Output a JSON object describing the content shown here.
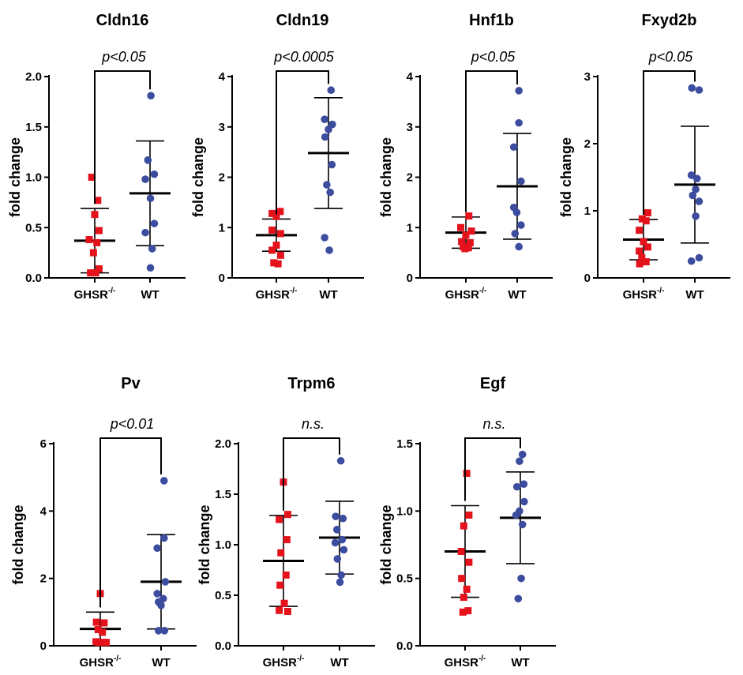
{
  "colors": {
    "ghsr": "#e3121b",
    "wt": "#3c4c9e",
    "axis": "#000000"
  },
  "chart_data": [
    {
      "type": "scatter",
      "title": "Cldn16",
      "ylabel": "fold change",
      "categories": [
        "GHSR",
        "WT"
      ],
      "category_superscript": [
        "-/-",
        ""
      ],
      "ylim": [
        0,
        2.0
      ],
      "yticks": [
        0,
        0.5,
        1.0,
        1.5,
        2.0
      ],
      "tick_labels": [
        "0.0",
        "0.5",
        "1.0",
        "1.5",
        "2.0"
      ],
      "significance": "p<0.05",
      "series": [
        {
          "name": "GHSR-/-",
          "mean": 0.37,
          "sd": 0.32,
          "points": [
            [
              -0.07,
              1.0
            ],
            [
              0.07,
              0.77
            ],
            [
              0.0,
              0.63
            ],
            [
              0.1,
              0.47
            ],
            [
              -0.13,
              0.38
            ],
            [
              0.05,
              0.35
            ],
            [
              -0.03,
              0.25
            ],
            [
              0.1,
              0.09
            ],
            [
              -0.1,
              0.05
            ],
            [
              0.02,
              0.05
            ]
          ]
        },
        {
          "name": "WT",
          "mean": 0.84,
          "sd": 0.52,
          "points": [
            [
              0.02,
              1.81
            ],
            [
              -0.05,
              1.17
            ],
            [
              0.1,
              1.03
            ],
            [
              -0.11,
              0.98
            ],
            [
              0.01,
              0.79
            ],
            [
              0.1,
              0.54
            ],
            [
              -0.11,
              0.45
            ],
            [
              0.05,
              0.29
            ],
            [
              0.01,
              0.1
            ]
          ]
        }
      ]
    },
    {
      "type": "scatter",
      "title": "Cldn19",
      "ylabel": "fold change",
      "categories": [
        "GHSR",
        "WT"
      ],
      "category_superscript": [
        "-/-",
        ""
      ],
      "ylim": [
        0,
        4
      ],
      "yticks": [
        0,
        1,
        2,
        3,
        4
      ],
      "tick_labels": [
        "0",
        "1",
        "2",
        "3",
        "4"
      ],
      "significance": "p<0.0005",
      "series": [
        {
          "name": "GHSR-/-",
          "mean": 0.85,
          "sd": 0.32,
          "points": [
            [
              0.09,
              1.32
            ],
            [
              -0.1,
              1.28
            ],
            [
              0.0,
              1.22
            ],
            [
              -0.1,
              0.95
            ],
            [
              0.1,
              0.88
            ],
            [
              0.0,
              0.65
            ],
            [
              -0.1,
              0.55
            ],
            [
              0.1,
              0.45
            ],
            [
              -0.06,
              0.3
            ],
            [
              0.04,
              0.28
            ]
          ]
        },
        {
          "name": "WT",
          "mean": 2.48,
          "sd": 1.1,
          "points": [
            [
              0.06,
              3.73
            ],
            [
              -0.09,
              3.15
            ],
            [
              0.09,
              3.05
            ],
            [
              0.0,
              2.95
            ],
            [
              -0.08,
              2.8
            ],
            [
              0.08,
              2.25
            ],
            [
              -0.04,
              1.85
            ],
            [
              0.04,
              1.7
            ],
            [
              -0.09,
              0.8
            ],
            [
              0.02,
              0.55
            ]
          ]
        }
      ]
    },
    {
      "type": "scatter",
      "title": "Hnf1b",
      "ylabel": "fold change",
      "categories": [
        "GHSR",
        "WT"
      ],
      "category_superscript": [
        "-/-",
        ""
      ],
      "ylim": [
        0,
        4
      ],
      "yticks": [
        0,
        1,
        2,
        3,
        4
      ],
      "tick_labels": [
        "0",
        "1",
        "2",
        "3",
        "4"
      ],
      "significance": "p<0.05",
      "series": [
        {
          "name": "GHSR-/-",
          "mean": 0.9,
          "sd": 0.31,
          "points": [
            [
              0.07,
              1.23
            ],
            [
              -0.12,
              1.0
            ],
            [
              0.13,
              0.93
            ],
            [
              0.0,
              0.85
            ],
            [
              -0.1,
              0.72
            ],
            [
              0.1,
              0.7
            ],
            [
              -0.06,
              0.62
            ],
            [
              0.06,
              0.6
            ],
            [
              -0.02,
              0.58
            ]
          ]
        },
        {
          "name": "WT",
          "mean": 1.82,
          "sd": 1.05,
          "points": [
            [
              0.04,
              3.72
            ],
            [
              0.04,
              3.08
            ],
            [
              -0.08,
              2.6
            ],
            [
              0.09,
              1.92
            ],
            [
              -0.08,
              1.4
            ],
            [
              -0.01,
              1.3
            ],
            [
              0.09,
              1.05
            ],
            [
              -0.05,
              0.88
            ],
            [
              0.04,
              0.62
            ]
          ]
        }
      ]
    },
    {
      "type": "scatter",
      "title": "Fxyd2b",
      "ylabel": "fold change",
      "categories": [
        "GHSR",
        "WT"
      ],
      "category_superscript": [
        "-/-",
        ""
      ],
      "ylim": [
        0,
        3
      ],
      "yticks": [
        0,
        1,
        2,
        3
      ],
      "tick_labels": [
        "0",
        "1",
        "2",
        "3"
      ],
      "significance": "p<0.05",
      "series": [
        {
          "name": "GHSR-/-",
          "mean": 0.57,
          "sd": 0.3,
          "points": [
            [
              0.1,
              0.97
            ],
            [
              -0.03,
              0.88
            ],
            [
              0.06,
              0.85
            ],
            [
              -0.1,
              0.71
            ],
            [
              0.0,
              0.54
            ],
            [
              0.1,
              0.46
            ],
            [
              -0.1,
              0.4
            ],
            [
              -0.04,
              0.3
            ],
            [
              0.06,
              0.24
            ],
            [
              -0.09,
              0.21
            ]
          ]
        },
        {
          "name": "WT",
          "mean": 1.39,
          "sd": 0.87,
          "points": [
            [
              -0.07,
              2.83
            ],
            [
              0.1,
              2.8
            ],
            [
              -0.08,
              1.53
            ],
            [
              0.05,
              1.48
            ],
            [
              0.02,
              1.32
            ],
            [
              -0.05,
              1.23
            ],
            [
              0.1,
              1.14
            ],
            [
              0.02,
              0.92
            ],
            [
              0.1,
              0.3
            ],
            [
              -0.08,
              0.25
            ]
          ]
        }
      ]
    },
    {
      "type": "scatter",
      "title": "Pv",
      "ylabel": "fold change",
      "categories": [
        "GHSR",
        "WT"
      ],
      "category_superscript": [
        "-/-",
        ""
      ],
      "ylim": [
        0,
        6
      ],
      "yticks": [
        0,
        2,
        4,
        6
      ],
      "tick_labels": [
        "0",
        "2",
        "4",
        "6"
      ],
      "significance": "p<0.01",
      "series": [
        {
          "name": "GHSR-/-",
          "mean": 0.5,
          "sd": 0.5,
          "points": [
            [
              0.0,
              1.55
            ],
            [
              -0.09,
              0.7
            ],
            [
              0.09,
              0.68
            ],
            [
              -0.05,
              0.48
            ],
            [
              0.05,
              0.4
            ],
            [
              -0.1,
              0.12
            ],
            [
              -0.03,
              0.1
            ],
            [
              0.03,
              0.1
            ],
            [
              0.09,
              0.1
            ],
            [
              0.14,
              0.1
            ]
          ]
        },
        {
          "name": "WT",
          "mean": 1.9,
          "sd": 1.4,
          "points": [
            [
              0.07,
              4.9
            ],
            [
              0.07,
              3.2
            ],
            [
              -0.09,
              2.9
            ],
            [
              0.1,
              1.9
            ],
            [
              -0.09,
              1.55
            ],
            [
              0.05,
              1.4
            ],
            [
              -0.06,
              1.3
            ],
            [
              0.0,
              1.2
            ],
            [
              -0.06,
              0.45
            ],
            [
              0.08,
              0.45
            ]
          ]
        }
      ]
    },
    {
      "type": "scatter",
      "title": "Trpm6",
      "ylabel": "fold change",
      "categories": [
        "GHSR",
        "WT"
      ],
      "category_superscript": [
        "-/-",
        ""
      ],
      "ylim": [
        0,
        2.0
      ],
      "yticks": [
        0,
        0.5,
        1.0,
        1.5,
        2.0
      ],
      "tick_labels": [
        "0.0",
        "0.5",
        "1.0",
        "1.5",
        "2.0"
      ],
      "significance": "n.s.",
      "series": [
        {
          "name": "GHSR-/-",
          "mean": 0.84,
          "sd": 0.45,
          "points": [
            [
              0.0,
              1.62
            ],
            [
              0.1,
              1.3
            ],
            [
              -0.1,
              1.25
            ],
            [
              0.08,
              1.05
            ],
            [
              -0.06,
              0.92
            ],
            [
              0.06,
              0.7
            ],
            [
              -0.08,
              0.6
            ],
            [
              0.02,
              0.42
            ],
            [
              -0.1,
              0.35
            ],
            [
              0.1,
              0.34
            ]
          ]
        },
        {
          "name": "WT",
          "mean": 1.07,
          "sd": 0.36,
          "points": [
            [
              0.03,
              1.83
            ],
            [
              -0.09,
              1.28
            ],
            [
              0.08,
              1.26
            ],
            [
              -0.06,
              1.15
            ],
            [
              0.06,
              1.05
            ],
            [
              -0.1,
              1.02
            ],
            [
              0.1,
              0.95
            ],
            [
              -0.05,
              0.86
            ],
            [
              0.04,
              0.7
            ],
            [
              0.01,
              0.63
            ]
          ]
        }
      ]
    },
    {
      "type": "scatter",
      "title": "Egf",
      "ylabel": "fold change",
      "categories": [
        "GHSR",
        "WT"
      ],
      "category_superscript": [
        "-/-",
        ""
      ],
      "ylim": [
        0,
        1.5
      ],
      "yticks": [
        0,
        0.5,
        1.0,
        1.5
      ],
      "tick_labels": [
        "0.0",
        "0.5",
        "1.0",
        "1.5"
      ],
      "significance": "n.s.",
      "series": [
        {
          "name": "GHSR-/-",
          "mean": 0.7,
          "sd": 0.34,
          "points": [
            [
              0.04,
              1.28
            ],
            [
              0.09,
              0.97
            ],
            [
              -0.03,
              0.89
            ],
            [
              -0.09,
              0.7
            ],
            [
              0.09,
              0.62
            ],
            [
              -0.08,
              0.5
            ],
            [
              0.04,
              0.42
            ],
            [
              -0.03,
              0.36
            ],
            [
              0.07,
              0.26
            ],
            [
              -0.05,
              0.25
            ]
          ]
        },
        {
          "name": "WT",
          "mean": 0.95,
          "sd": 0.34,
          "points": [
            [
              0.05,
              1.42
            ],
            [
              -0.02,
              1.37
            ],
            [
              0.08,
              1.2
            ],
            [
              -0.08,
              1.18
            ],
            [
              0.09,
              1.07
            ],
            [
              -0.02,
              1.0
            ],
            [
              -0.1,
              0.97
            ],
            [
              0.05,
              0.9
            ],
            [
              0.02,
              0.5
            ],
            [
              -0.05,
              0.35
            ]
          ]
        }
      ]
    }
  ]
}
